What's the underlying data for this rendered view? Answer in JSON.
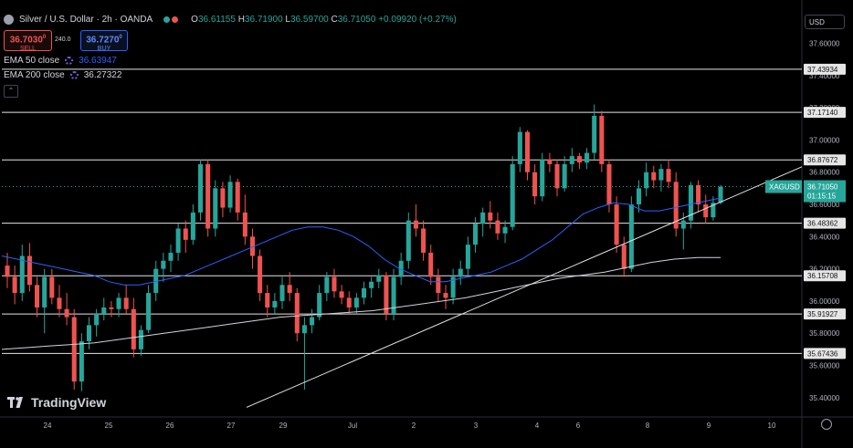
{
  "header": {
    "symbol_title": "Silver / U.S. Dollar · 2h · OANDA",
    "ohlc": [
      {
        "key": "O",
        "value": "36.61155"
      },
      {
        "key": "H",
        "value": "36.71900"
      },
      {
        "key": "L",
        "value": "36.59700"
      },
      {
        "key": "C",
        "value": "36.71050"
      }
    ],
    "change": "+0.09920 (+0.27%)"
  },
  "trade": {
    "sell_price": "36.7030",
    "sell_price_sup": "0",
    "sell_label": "SELL",
    "spread": "240.0",
    "buy_price": "36.7270",
    "buy_price_sup": "0",
    "buy_label": "BUY"
  },
  "indicators": [
    {
      "label": "EMA 50 close",
      "value": "36.63947",
      "color": "#2962ff"
    },
    {
      "label": "EMA 200 close",
      "value": "36.27322",
      "color": "#d1d4dc"
    }
  ],
  "collapse_glyph": "⌃",
  "currency": "USD",
  "branding": {
    "logo_text": "TradingView"
  },
  "colors": {
    "up": "#26a69a",
    "down": "#ef5350",
    "ema50": "#2962ff",
    "ema200": "#d1d4dc",
    "last_price": "#26a69a"
  },
  "chart_data": {
    "type": "candlestick",
    "symbol": "XAGUSD",
    "timeframe": "2h",
    "ylim": [
      35.28,
      37.79
    ],
    "y_ticks": [
      "37.60000",
      "37.40000",
      "37.20000",
      "37.00000",
      "36.80000",
      "36.60000",
      "36.40000",
      "36.20000",
      "36.00000",
      "35.80000",
      "35.60000",
      "35.40000"
    ],
    "x_ticks": [
      "24",
      "25",
      "26",
      "27",
      "29",
      "Jul",
      "2",
      "3",
      "4",
      "6",
      "8",
      "9",
      "10"
    ],
    "horizontal_levels": [
      "37.43934",
      "37.17140",
      "36.87672",
      "36.48362",
      "36.15708",
      "35.91927",
      "35.67436"
    ],
    "last_price": {
      "symbol": "XAGUSD",
      "value": "36.71050",
      "countdown": "01:15:15"
    },
    "trendline": {
      "start": {
        "x": "24 Jun 2025",
        "y": 35.34
      },
      "end": {
        "x": "9 Jul 2025",
        "y": 36.72
      }
    },
    "candles": [
      {
        "o": 36.22,
        "h": 36.3,
        "l": 36.08,
        "c": 36.15
      },
      {
        "o": 36.15,
        "h": 36.22,
        "l": 35.98,
        "c": 36.05
      },
      {
        "o": 36.05,
        "h": 36.35,
        "l": 36.0,
        "c": 36.28
      },
      {
        "o": 36.28,
        "h": 36.36,
        "l": 36.06,
        "c": 36.1
      },
      {
        "o": 36.1,
        "h": 36.15,
        "l": 35.9,
        "c": 35.96
      },
      {
        "o": 35.96,
        "h": 36.2,
        "l": 35.8,
        "c": 36.15
      },
      {
        "o": 36.15,
        "h": 36.2,
        "l": 35.98,
        "c": 36.02
      },
      {
        "o": 36.02,
        "h": 36.1,
        "l": 35.9,
        "c": 35.95
      },
      {
        "o": 35.95,
        "h": 36.05,
        "l": 35.85,
        "c": 35.9
      },
      {
        "o": 35.9,
        "h": 35.95,
        "l": 35.45,
        "c": 35.5
      },
      {
        "o": 35.5,
        "h": 35.8,
        "l": 35.44,
        "c": 35.75
      },
      {
        "o": 35.75,
        "h": 35.9,
        "l": 35.7,
        "c": 35.85
      },
      {
        "o": 35.85,
        "h": 35.95,
        "l": 35.78,
        "c": 35.92
      },
      {
        "o": 35.92,
        "h": 36.02,
        "l": 35.88,
        "c": 35.96
      },
      {
        "o": 35.96,
        "h": 36.0,
        "l": 35.9,
        "c": 35.95
      },
      {
        "o": 35.95,
        "h": 36.05,
        "l": 35.9,
        "c": 36.02
      },
      {
        "o": 36.02,
        "h": 36.1,
        "l": 35.92,
        "c": 35.95
      },
      {
        "o": 35.95,
        "h": 36.02,
        "l": 35.65,
        "c": 35.7
      },
      {
        "o": 35.7,
        "h": 35.85,
        "l": 35.66,
        "c": 35.82
      },
      {
        "o": 35.82,
        "h": 36.1,
        "l": 35.8,
        "c": 36.05
      },
      {
        "o": 36.05,
        "h": 36.25,
        "l": 36.0,
        "c": 36.2
      },
      {
        "o": 36.2,
        "h": 36.3,
        "l": 36.12,
        "c": 36.25
      },
      {
        "o": 36.25,
        "h": 36.35,
        "l": 36.18,
        "c": 36.3
      },
      {
        "o": 36.3,
        "h": 36.48,
        "l": 36.25,
        "c": 36.45
      },
      {
        "o": 36.45,
        "h": 36.5,
        "l": 36.3,
        "c": 36.38
      },
      {
        "o": 36.38,
        "h": 36.6,
        "l": 36.35,
        "c": 36.55
      },
      {
        "o": 36.55,
        "h": 36.88,
        "l": 36.5,
        "c": 36.85
      },
      {
        "o": 36.85,
        "h": 36.88,
        "l": 36.4,
        "c": 36.45
      },
      {
        "o": 36.45,
        "h": 36.75,
        "l": 36.4,
        "c": 36.7
      },
      {
        "o": 36.7,
        "h": 36.74,
        "l": 36.52,
        "c": 36.58
      },
      {
        "o": 36.58,
        "h": 36.78,
        "l": 36.55,
        "c": 36.74
      },
      {
        "o": 36.74,
        "h": 36.76,
        "l": 36.5,
        "c": 36.55
      },
      {
        "o": 36.55,
        "h": 36.66,
        "l": 36.35,
        "c": 36.4
      },
      {
        "o": 36.4,
        "h": 36.45,
        "l": 36.2,
        "c": 36.28
      },
      {
        "o": 36.28,
        "h": 36.32,
        "l": 36.0,
        "c": 36.05
      },
      {
        "o": 36.05,
        "h": 36.1,
        "l": 35.9,
        "c": 35.96
      },
      {
        "o": 35.96,
        "h": 36.05,
        "l": 35.92,
        "c": 36.0
      },
      {
        "o": 36.0,
        "h": 36.15,
        "l": 35.95,
        "c": 36.1
      },
      {
        "o": 36.1,
        "h": 36.18,
        "l": 36.0,
        "c": 36.05
      },
      {
        "o": 36.05,
        "h": 36.08,
        "l": 35.75,
        "c": 35.8
      },
      {
        "o": 35.8,
        "h": 35.9,
        "l": 35.45,
        "c": 35.85
      },
      {
        "o": 35.85,
        "h": 35.95,
        "l": 35.8,
        "c": 35.9
      },
      {
        "o": 35.9,
        "h": 36.1,
        "l": 35.88,
        "c": 36.05
      },
      {
        "o": 36.05,
        "h": 36.18,
        "l": 36.0,
        "c": 36.15
      },
      {
        "o": 36.15,
        "h": 36.2,
        "l": 36.02,
        "c": 36.06
      },
      {
        "o": 36.06,
        "h": 36.1,
        "l": 35.98,
        "c": 36.02
      },
      {
        "o": 36.02,
        "h": 36.06,
        "l": 35.92,
        "c": 35.96
      },
      {
        "o": 35.96,
        "h": 36.05,
        "l": 35.92,
        "c": 36.02
      },
      {
        "o": 36.02,
        "h": 36.12,
        "l": 35.98,
        "c": 36.08
      },
      {
        "o": 36.08,
        "h": 36.15,
        "l": 36.02,
        "c": 36.12
      },
      {
        "o": 36.12,
        "h": 36.2,
        "l": 36.08,
        "c": 36.16
      },
      {
        "o": 36.16,
        "h": 36.18,
        "l": 35.88,
        "c": 35.92
      },
      {
        "o": 35.92,
        "h": 36.2,
        "l": 35.88,
        "c": 36.15
      },
      {
        "o": 36.15,
        "h": 36.3,
        "l": 36.1,
        "c": 36.25
      },
      {
        "o": 36.25,
        "h": 36.55,
        "l": 36.2,
        "c": 36.5
      },
      {
        "o": 36.5,
        "h": 36.6,
        "l": 36.4,
        "c": 36.45
      },
      {
        "o": 36.45,
        "h": 36.5,
        "l": 36.25,
        "c": 36.3
      },
      {
        "o": 36.3,
        "h": 36.35,
        "l": 36.1,
        "c": 36.15
      },
      {
        "o": 36.15,
        "h": 36.2,
        "l": 36.0,
        "c": 36.05
      },
      {
        "o": 36.05,
        "h": 36.1,
        "l": 35.95,
        "c": 36.02
      },
      {
        "o": 36.02,
        "h": 36.2,
        "l": 35.98,
        "c": 36.15
      },
      {
        "o": 36.15,
        "h": 36.25,
        "l": 36.1,
        "c": 36.2
      },
      {
        "o": 36.2,
        "h": 36.4,
        "l": 36.15,
        "c": 36.35
      },
      {
        "o": 36.35,
        "h": 36.52,
        "l": 36.3,
        "c": 36.48
      },
      {
        "o": 36.48,
        "h": 36.58,
        "l": 36.4,
        "c": 36.55
      },
      {
        "o": 36.55,
        "h": 36.62,
        "l": 36.45,
        "c": 36.5
      },
      {
        "o": 36.5,
        "h": 36.55,
        "l": 36.38,
        "c": 36.42
      },
      {
        "o": 36.42,
        "h": 36.5,
        "l": 36.36,
        "c": 36.46
      },
      {
        "o": 36.46,
        "h": 36.9,
        "l": 36.44,
        "c": 36.85
      },
      {
        "o": 36.85,
        "h": 37.08,
        "l": 36.8,
        "c": 37.05
      },
      {
        "o": 37.05,
        "h": 37.06,
        "l": 36.75,
        "c": 36.8
      },
      {
        "o": 36.8,
        "h": 36.85,
        "l": 36.6,
        "c": 36.65
      },
      {
        "o": 36.65,
        "h": 36.92,
        "l": 36.62,
        "c": 36.88
      },
      {
        "o": 36.88,
        "h": 36.92,
        "l": 36.8,
        "c": 36.85
      },
      {
        "o": 36.85,
        "h": 36.88,
        "l": 36.65,
        "c": 36.7
      },
      {
        "o": 36.7,
        "h": 36.9,
        "l": 36.68,
        "c": 36.85
      },
      {
        "o": 36.85,
        "h": 36.95,
        "l": 36.8,
        "c": 36.9
      },
      {
        "o": 36.9,
        "h": 36.92,
        "l": 36.82,
        "c": 36.86
      },
      {
        "o": 36.86,
        "h": 36.95,
        "l": 36.82,
        "c": 36.92
      },
      {
        "o": 36.92,
        "h": 37.22,
        "l": 36.88,
        "c": 37.15
      },
      {
        "o": 37.15,
        "h": 37.18,
        "l": 36.8,
        "c": 36.85
      },
      {
        "o": 36.85,
        "h": 36.88,
        "l": 36.55,
        "c": 36.6
      },
      {
        "o": 36.6,
        "h": 36.65,
        "l": 36.3,
        "c": 36.35
      },
      {
        "o": 36.35,
        "h": 36.4,
        "l": 36.15,
        "c": 36.2
      },
      {
        "o": 36.2,
        "h": 36.65,
        "l": 36.18,
        "c": 36.6
      },
      {
        "o": 36.6,
        "h": 36.75,
        "l": 36.55,
        "c": 36.7
      },
      {
        "o": 36.7,
        "h": 36.86,
        "l": 36.65,
        "c": 36.8
      },
      {
        "o": 36.8,
        "h": 36.84,
        "l": 36.7,
        "c": 36.75
      },
      {
        "o": 36.75,
        "h": 36.85,
        "l": 36.68,
        "c": 36.82
      },
      {
        "o": 36.82,
        "h": 36.88,
        "l": 36.7,
        "c": 36.74
      },
      {
        "o": 36.74,
        "h": 36.8,
        "l": 36.4,
        "c": 36.45
      },
      {
        "o": 36.45,
        "h": 36.55,
        "l": 36.32,
        "c": 36.5
      },
      {
        "o": 36.5,
        "h": 36.74,
        "l": 36.45,
        "c": 36.72
      },
      {
        "o": 36.72,
        "h": 36.75,
        "l": 36.55,
        "c": 36.6
      },
      {
        "o": 36.6,
        "h": 36.66,
        "l": 36.48,
        "c": 36.52
      },
      {
        "o": 36.52,
        "h": 36.65,
        "l": 36.5,
        "c": 36.61
      },
      {
        "o": 36.61,
        "h": 36.72,
        "l": 36.6,
        "c": 36.71
      }
    ],
    "ema50": [
      36.28,
      36.26,
      36.24,
      36.22,
      36.2,
      36.18,
      36.16,
      36.12,
      36.1,
      36.1,
      36.12,
      36.14,
      36.16,
      36.2,
      36.24,
      36.28,
      36.32,
      36.36,
      36.4,
      36.44,
      36.46,
      36.46,
      36.44,
      36.4,
      36.34,
      36.26,
      36.2,
      36.16,
      36.12,
      36.12,
      36.14,
      36.16,
      36.18,
      36.22,
      36.26,
      36.32,
      36.38,
      36.46,
      36.54,
      36.58,
      36.61,
      36.6,
      36.56,
      36.56,
      36.58,
      36.6,
      36.62,
      36.64
    ],
    "ema200": [
      35.7,
      35.71,
      35.72,
      35.73,
      35.74,
      35.76,
      35.78,
      35.8,
      35.82,
      35.84,
      35.86,
      35.88,
      35.9,
      35.91,
      35.92,
      35.93,
      35.94,
      35.96,
      35.98,
      36.0,
      36.02,
      36.05,
      36.08,
      36.11,
      36.14,
      36.16,
      36.18,
      36.21,
      36.24,
      36.26,
      36.27,
      36.27
    ]
  }
}
